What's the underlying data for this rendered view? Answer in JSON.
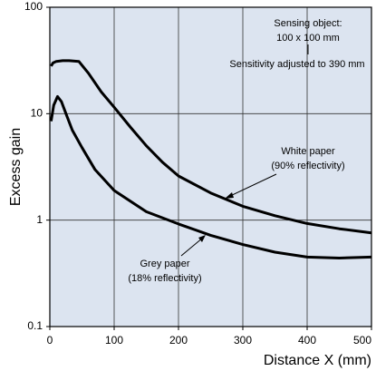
{
  "chart_data": {
    "type": "line",
    "xlabel": "Distance X (mm)",
    "ylabel": "Excess gain",
    "xlim": [
      0,
      500
    ],
    "xticks": [
      0,
      100,
      200,
      300,
      400,
      500
    ],
    "ylim": [
      0.1,
      100
    ],
    "yticks": [
      0.1,
      1,
      10,
      100
    ],
    "log_y": true,
    "grid": true,
    "background": "#dce4f0",
    "annotations": [
      "Sensing object:",
      "100 x 100 mm",
      "Sensitivity adjusted to 390 mm"
    ],
    "series": [
      {
        "name": "White paper",
        "note": "(90% reflectivity)",
        "color": "#000000",
        "x": [
          2,
          5,
          10,
          20,
          30,
          45,
          60,
          80,
          100,
          125,
          150,
          175,
          200,
          250,
          300,
          350,
          400,
          450,
          500
        ],
        "values": [
          28,
          30,
          31,
          31.5,
          31.5,
          31,
          24,
          16,
          11.5,
          7.5,
          5,
          3.5,
          2.6,
          1.8,
          1.35,
          1.1,
          0.93,
          0.83,
          0.76
        ]
      },
      {
        "name": "Grey paper",
        "note": "(18% reflectivity)",
        "color": "#000000",
        "x": [
          2,
          6,
          12,
          18,
          25,
          35,
          50,
          70,
          100,
          150,
          200,
          250,
          300,
          350,
          400,
          450,
          500
        ],
        "values": [
          8.5,
          12,
          14.5,
          13,
          10,
          7,
          4.8,
          3,
          1.9,
          1.2,
          0.92,
          0.72,
          0.59,
          0.5,
          0.45,
          0.44,
          0.45
        ]
      }
    ]
  }
}
